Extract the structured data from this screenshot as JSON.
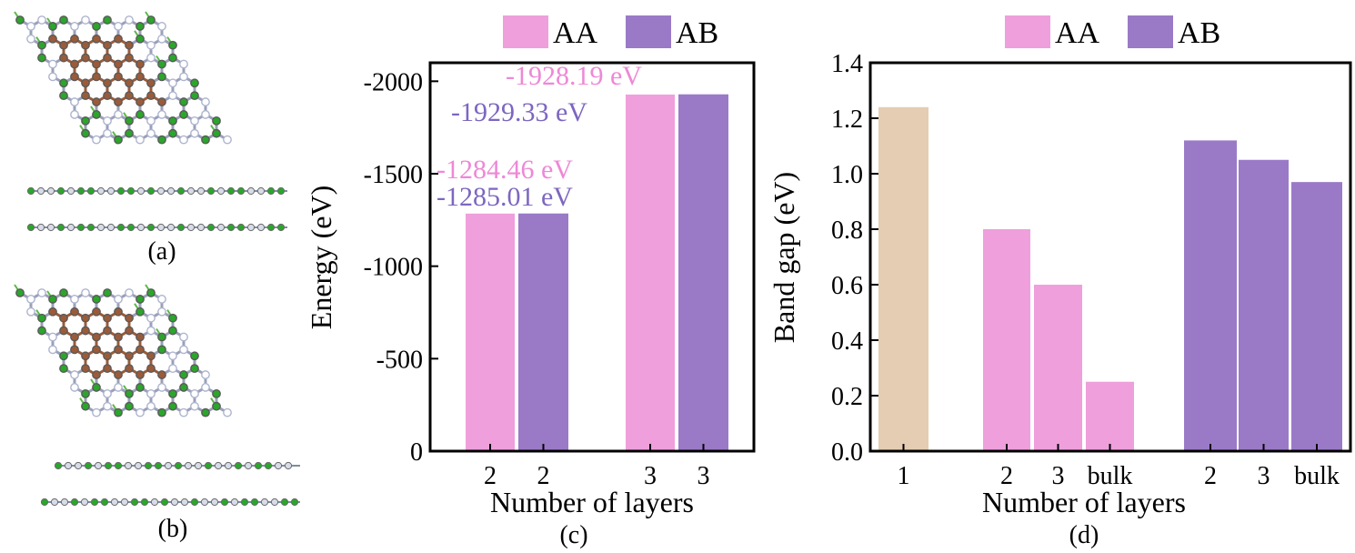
{
  "panels": {
    "a": {
      "label": "(a)"
    },
    "b": {
      "label": "(b)"
    }
  },
  "colors": {
    "AA": "#ee9fdc",
    "AB": "#9a7ac7",
    "monolayer": "#e4cdb2",
    "label_AA": "#ee88d6",
    "label_AB": "#7d66c0",
    "carbon": "#9b5b39",
    "nitrogen": "#aeb4cf",
    "boron": "#2aa62a",
    "hydrogen": "#5db848"
  },
  "chart_data": [
    {
      "type": "bar",
      "panel_label": "(c)",
      "categories": [
        "2",
        "2",
        "3",
        "3"
      ],
      "series": [
        {
          "name": "AA",
          "x": [
            "2",
            "3"
          ],
          "values": [
            -1284.46,
            -1928.19
          ]
        },
        {
          "name": "AB",
          "x": [
            "2",
            "3"
          ],
          "values": [
            -1285.01,
            -1929.33
          ]
        }
      ],
      "xlabel": "Number of layers",
      "ylabel": "Energy (eV)",
      "ylim": [
        0,
        -2100
      ],
      "yaxis_reversed": true,
      "yticks": [
        "0",
        "-500",
        "-1000",
        "-1500",
        "-2000"
      ],
      "ytick_values": [
        0,
        -500,
        -1000,
        -1500,
        -2000
      ],
      "annotations": [
        "-1284.46 eV",
        "-1285.01 eV",
        "-1928.19 eV",
        "-1929.33 eV"
      ],
      "legend": {
        "items": [
          "AA",
          "AB"
        ],
        "placement": "top"
      },
      "grid": false
    },
    {
      "type": "bar",
      "panel_label": "(d)",
      "categories": [
        "1",
        "2",
        "3",
        "bulk",
        "2",
        "3",
        "bulk"
      ],
      "series": [
        {
          "name": "",
          "x": [
            "1"
          ],
          "values": [
            1.24
          ]
        },
        {
          "name": "AA",
          "x": [
            "2",
            "3",
            "bulk"
          ],
          "values": [
            0.8,
            0.6,
            0.25
          ]
        },
        {
          "name": "AB",
          "x": [
            "2",
            "3",
            "bulk"
          ],
          "values": [
            1.12,
            1.05,
            0.97
          ]
        }
      ],
      "xlabel": "Number of layers",
      "ylabel": "Band gap (eV)",
      "ylim": [
        0,
        1.4
      ],
      "yticks": [
        "0.0",
        "0.2",
        "0.4",
        "0.6",
        "0.8",
        "1.0",
        "1.2",
        "1.4"
      ],
      "ytick_values": [
        0,
        0.2,
        0.4,
        0.6,
        0.8,
        1.0,
        1.2,
        1.4
      ],
      "legend": {
        "items": [
          "AA",
          "AB"
        ],
        "placement": "top"
      },
      "grid": false
    }
  ]
}
